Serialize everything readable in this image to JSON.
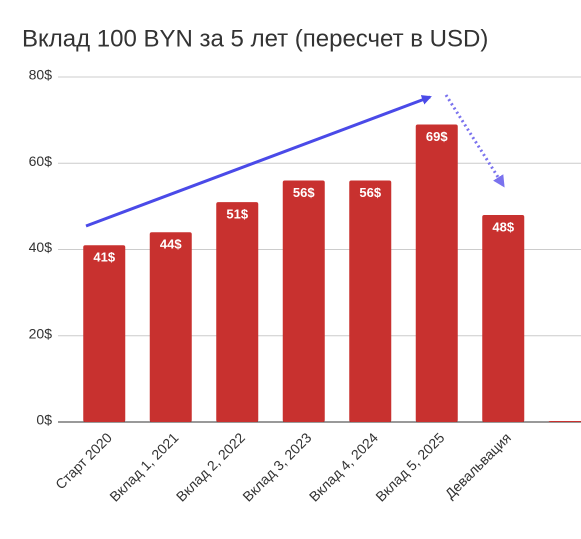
{
  "chart_data": {
    "type": "bar",
    "title": "Вклад 100 BYN за 5 лет (пересчет в USD)",
    "categories": [
      "Старт 2020",
      "Вклад 1, 2021",
      "Вклад 2, 2022",
      "Вклад 3, 2023",
      "Вклад 4, 2024",
      "Вклад 5, 2025",
      "Девальвация",
      null
    ],
    "values": [
      41,
      44,
      51,
      56,
      56,
      69,
      48,
      0
    ],
    "value_labels": [
      "41$",
      "44$",
      "51$",
      "56$",
      "56$",
      "69$",
      "48$",
      null
    ],
    "color": "#c8312f",
    "ylim": [
      0,
      80
    ],
    "yticks": [
      {
        "value": 0,
        "label": "0$"
      },
      {
        "value": 20,
        "label": "20$"
      },
      {
        "value": 40,
        "label": "40$"
      },
      {
        "value": 60,
        "label": "60$"
      },
      {
        "value": 80,
        "label": "80$"
      }
    ],
    "grid": true
  }
}
